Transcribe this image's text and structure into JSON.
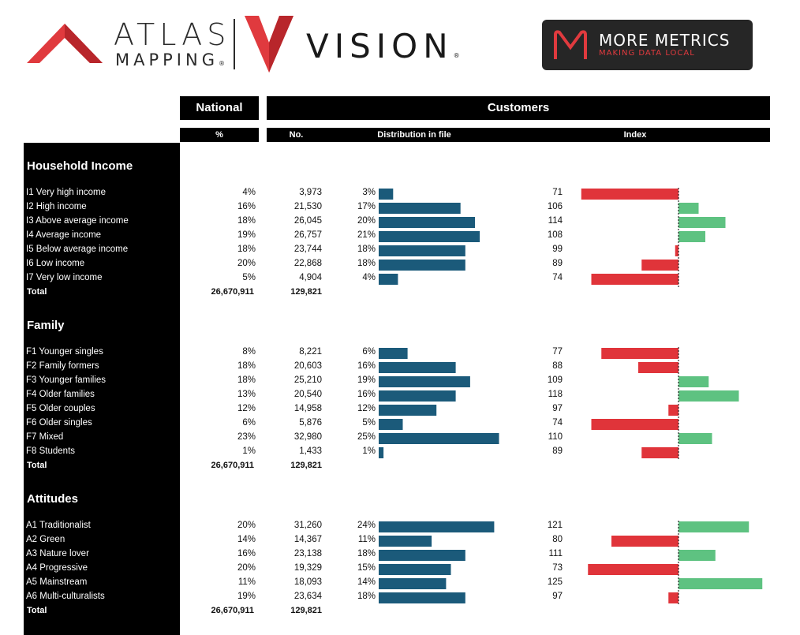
{
  "header": {
    "atlas_logo": {
      "word1": "ATLAS",
      "word2": "MAPPING",
      "reg": "®"
    },
    "vision_logo": {
      "word": "VISION",
      "reg": "®"
    },
    "more_metrics": {
      "title": "MORE METRICS",
      "subtitle": "MAKING DATA LOCAL"
    },
    "colors": {
      "brand_red": "#e03a3e",
      "dark": "#262626"
    }
  },
  "columns": {
    "national": "National",
    "customers": "Customers",
    "pct": "%",
    "no": "No.",
    "distribution": "Distribution in file",
    "index": "Index"
  },
  "chart_data": {
    "type": "table",
    "colors": {
      "distribution_bar": "#1b5a7a",
      "index_above": "#5ec281",
      "index_below": "#e0343a"
    },
    "index_baseline": 100,
    "sections": [
      {
        "title": "Household Income",
        "rows": [
          {
            "label": "I1 Very high income",
            "national_pct": "4%",
            "number": "3,973",
            "dist_label": "3%",
            "dist": 3,
            "index": 71
          },
          {
            "label": "I2 High income",
            "national_pct": "16%",
            "number": "21,530",
            "dist_label": "17%",
            "dist": 17,
            "index": 106
          },
          {
            "label": "I3 Above average income",
            "national_pct": "18%",
            "number": "26,045",
            "dist_label": "20%",
            "dist": 20,
            "index": 114
          },
          {
            "label": "I4 Average income",
            "national_pct": "19%",
            "number": "26,757",
            "dist_label": "21%",
            "dist": 21,
            "index": 108
          },
          {
            "label": "I5 Below average income",
            "national_pct": "18%",
            "number": "23,744",
            "dist_label": "18%",
            "dist": 18,
            "index": 99
          },
          {
            "label": "I6 Low income",
            "national_pct": "20%",
            "number": "22,868",
            "dist_label": "18%",
            "dist": 18,
            "index": 89
          },
          {
            "label": "I7 Very low income",
            "national_pct": "5%",
            "number": "4,904",
            "dist_label": "4%",
            "dist": 4,
            "index": 74
          }
        ],
        "total": {
          "label": "Total",
          "national": "26,670,911",
          "number": "129,821"
        }
      },
      {
        "title": "Family",
        "rows": [
          {
            "label": "F1 Younger singles",
            "national_pct": "8%",
            "number": "8,221",
            "dist_label": "6%",
            "dist": 6,
            "index": 77
          },
          {
            "label": "F2 Family formers",
            "national_pct": "18%",
            "number": "20,603",
            "dist_label": "16%",
            "dist": 16,
            "index": 88
          },
          {
            "label": "F3 Younger families",
            "national_pct": "18%",
            "number": "25,210",
            "dist_label": "19%",
            "dist": 19,
            "index": 109
          },
          {
            "label": "F4 Older families",
            "national_pct": "13%",
            "number": "20,540",
            "dist_label": "16%",
            "dist": 16,
            "index": 118
          },
          {
            "label": "F5 Older couples",
            "national_pct": "12%",
            "number": "14,958",
            "dist_label": "12%",
            "dist": 12,
            "index": 97
          },
          {
            "label": "F6 Older singles",
            "national_pct": "6%",
            "number": "5,876",
            "dist_label": "5%",
            "dist": 5,
            "index": 74
          },
          {
            "label": "F7 Mixed",
            "national_pct": "23%",
            "number": "32,980",
            "dist_label": "25%",
            "dist": 25,
            "index": 110
          },
          {
            "label": "F8 Students",
            "national_pct": "1%",
            "number": "1,433",
            "dist_label": "1%",
            "dist": 1,
            "index": 89
          }
        ],
        "total": {
          "label": "Total",
          "national": "26,670,911",
          "number": "129,821"
        }
      },
      {
        "title": "Attitudes",
        "rows": [
          {
            "label": "A1 Traditionalist",
            "national_pct": "20%",
            "number": "31,260",
            "dist_label": "24%",
            "dist": 24,
            "index": 121
          },
          {
            "label": "A2 Green",
            "national_pct": "14%",
            "number": "14,367",
            "dist_label": "11%",
            "dist": 11,
            "index": 80
          },
          {
            "label": "A3 Nature lover",
            "national_pct": "16%",
            "number": "23,138",
            "dist_label": "18%",
            "dist": 18,
            "index": 111
          },
          {
            "label": "A4 Progressive",
            "national_pct": "20%",
            "number": "19,329",
            "dist_label": "15%",
            "dist": 15,
            "index": 73
          },
          {
            "label": "A5 Mainstream",
            "national_pct": "11%",
            "number": "18,093",
            "dist_label": "14%",
            "dist": 14,
            "index": 125
          },
          {
            "label": "A6 Multi-culturalists",
            "national_pct": "19%",
            "number": "23,634",
            "dist_label": "18%",
            "dist": 18,
            "index": 97
          }
        ],
        "total": {
          "label": "Total",
          "national": "26,670,911",
          "number": "129,821"
        }
      }
    ]
  }
}
